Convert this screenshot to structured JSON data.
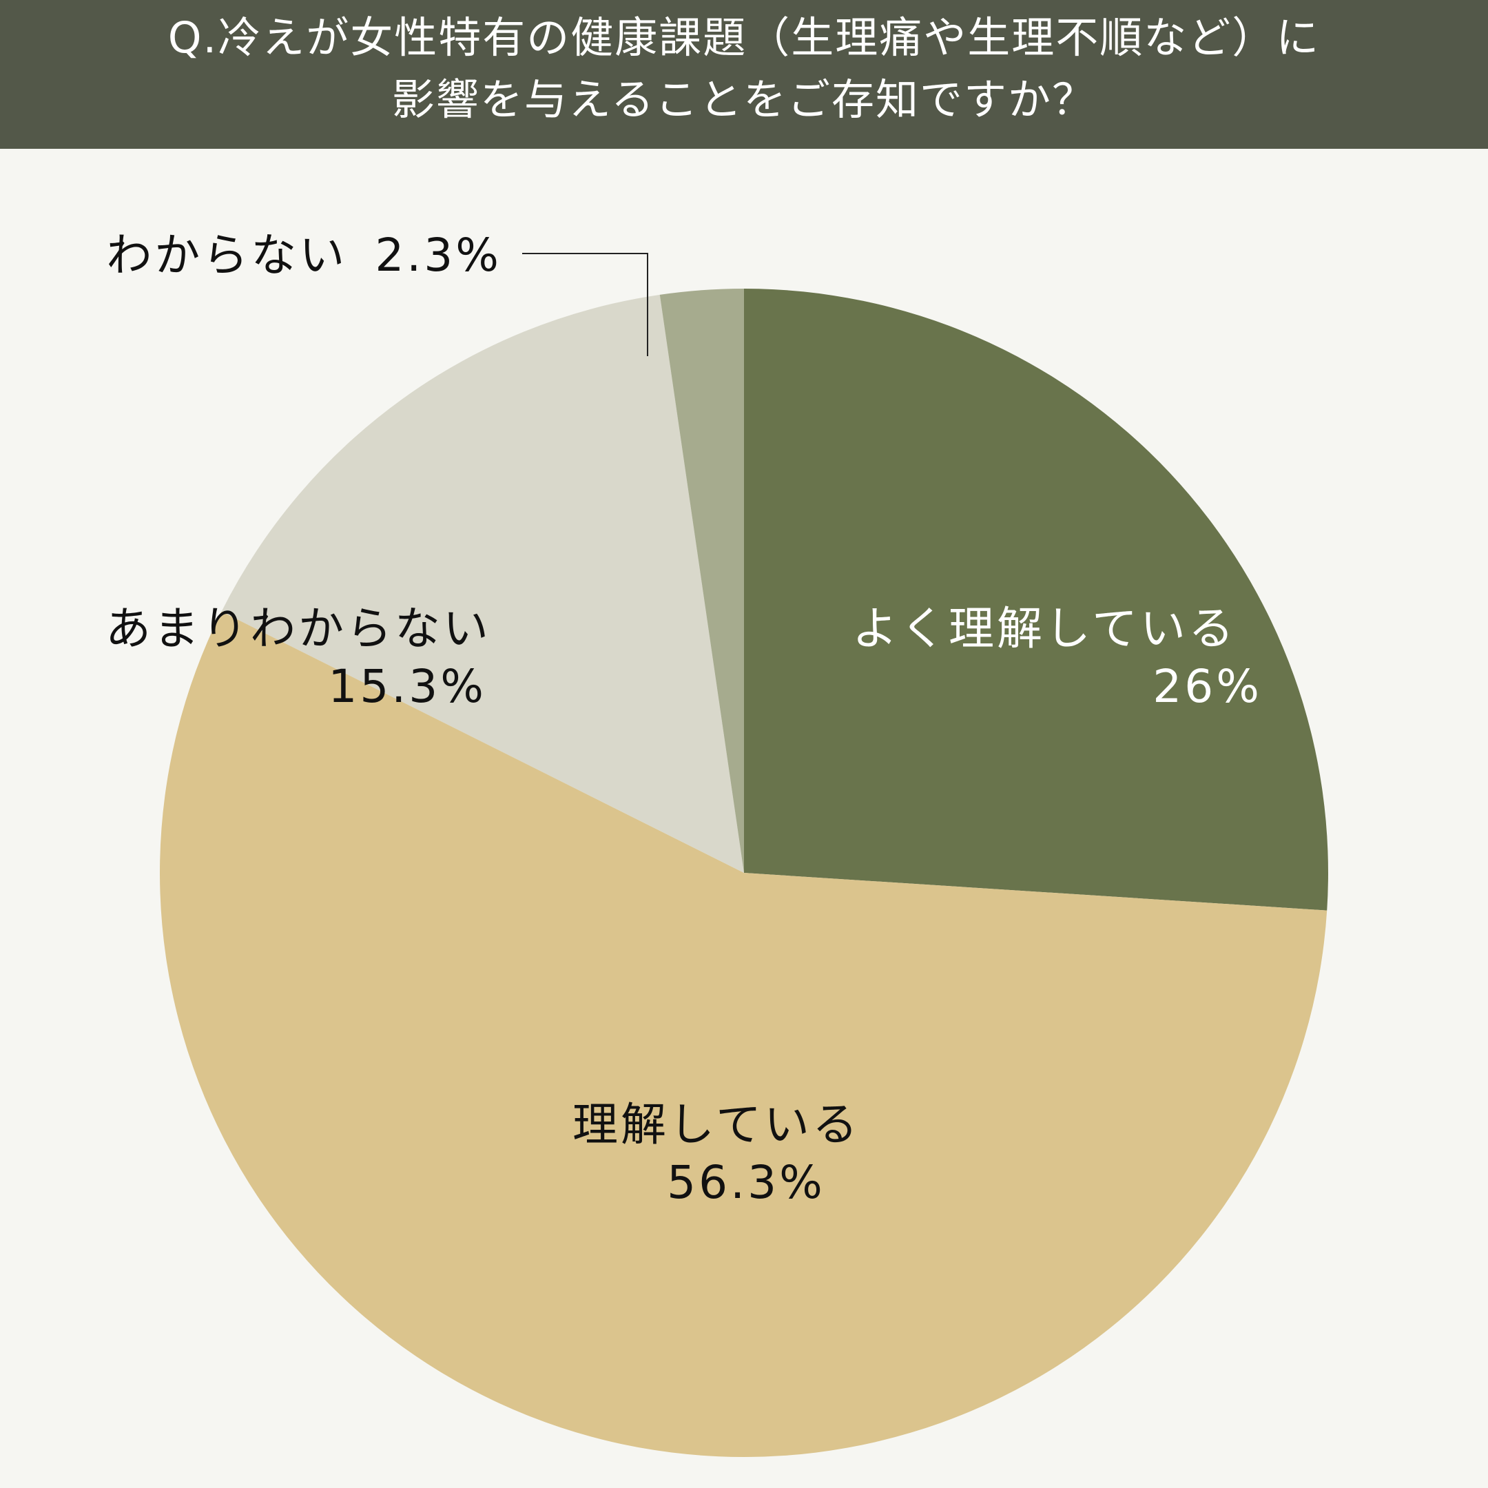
{
  "header": {
    "title_line1": "Q.冷えが女性特有の健康課題（生理痛や生理不順など）に",
    "title_line2": "影響を与えることをご存知ですか？"
  },
  "colors": {
    "header_bg": "#535849",
    "background": "#f6f6f2"
  },
  "chart_data": {
    "type": "pie",
    "title": "Q.冷えが女性特有の健康課題（生理痛や生理不順など）に影響を与えることをご存知ですか？",
    "start_angle_deg": 0,
    "direction": "clockwise",
    "slices": [
      {
        "label": "よく理解している",
        "value": 26,
        "value_label": "26%",
        "color": "#69744c",
        "text_color": "#ffffff"
      },
      {
        "label": "理解している",
        "value": 56.3,
        "value_label": "56.3%",
        "color": "#dbc48d",
        "text_color": "#111111"
      },
      {
        "label": "あまりわからない",
        "value": 15.3,
        "value_label": "15.3%",
        "color": "#d9d8cb",
        "text_color": "#111111"
      },
      {
        "label": "わからない",
        "value": 2.3,
        "value_label": "2.3%",
        "color": "#a6ab8e",
        "text_color": "#111111"
      }
    ]
  }
}
